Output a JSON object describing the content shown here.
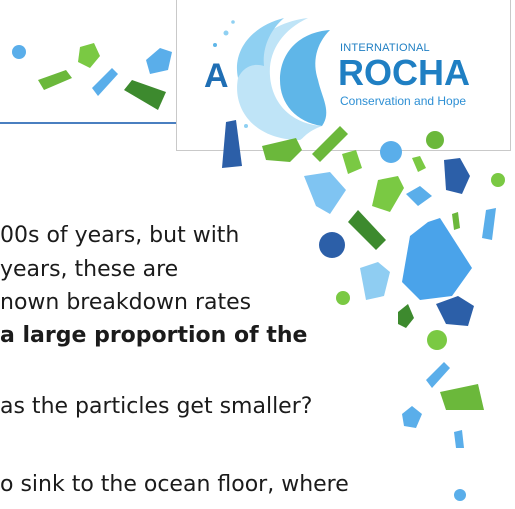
{
  "logo": {
    "letter": "A",
    "international": "INTERNATIONAL",
    "rocha": "ROCHA",
    "tagline": "Conservation and Hope"
  },
  "body": {
    "lines": [
      "00s of years, but with",
      "years, these are",
      "nown breakdown rates",
      "a large proportion of the",
      "as the particles get smaller?",
      "o sink to the ocean floor, where"
    ]
  },
  "colors": {
    "accent_line": "#4a7fc0",
    "logo_blue": "#1f7fc3",
    "green_dark": "#3d8a2e",
    "green_light": "#7ac943",
    "blue_dark": "#2c5fa8",
    "blue_light": "#5aaeea"
  },
  "decorations": "plastic-fragment-shapes"
}
